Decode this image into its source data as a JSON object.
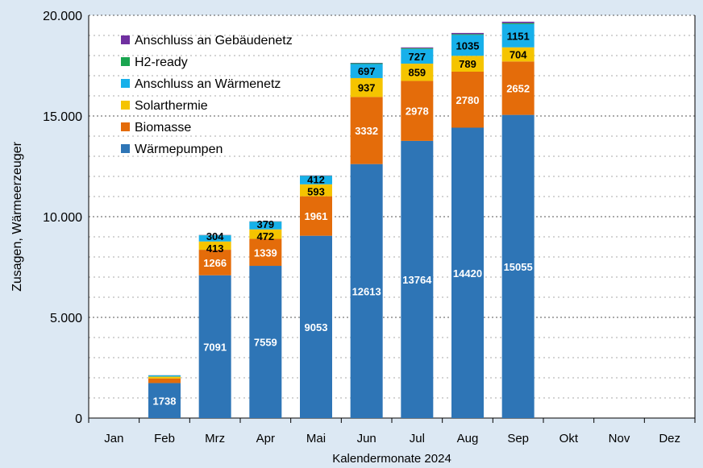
{
  "chart_data": {
    "type": "bar",
    "stacked": true,
    "xlabel": "Kalendermonate 2024",
    "ylabel": "Zusagen, Wärmeerzeuger",
    "ylim": [
      0,
      20000
    ],
    "yticks": [
      "0",
      "5.000",
      "10.000",
      "15.000",
      "20.000"
    ],
    "grid": true,
    "legend": "top-left",
    "categories": [
      "Jan",
      "Feb",
      "Mrz",
      "Apr",
      "Mai",
      "Jun",
      "Jul",
      "Aug",
      "Sep",
      "Okt",
      "Nov",
      "Dez"
    ],
    "series": [
      {
        "name": "Wärmepumpen",
        "color": "#2e75b6",
        "values": [
          0,
          1738,
          7091,
          7559,
          9053,
          12613,
          13764,
          14420,
          15055,
          0,
          0,
          0
        ],
        "labels": [
          null,
          "1738",
          "7091",
          "7559",
          "9053",
          "12613",
          "13764",
          "14420",
          "15055",
          null,
          null,
          null
        ],
        "label_color": "#ffffff"
      },
      {
        "name": "Biomasse",
        "color": "#e46c0a",
        "values": [
          0,
          230,
          1266,
          1339,
          1961,
          3332,
          2978,
          2780,
          2652,
          0,
          0,
          0
        ],
        "labels": [
          null,
          null,
          "1266",
          "1339",
          "1961",
          "3332",
          "2978",
          "2780",
          "2652",
          null,
          null,
          null
        ],
        "label_color": "#ffffff"
      },
      {
        "name": "Solarthermie",
        "color": "#f5c400",
        "values": [
          0,
          90,
          413,
          472,
          593,
          937,
          859,
          789,
          704,
          0,
          0,
          0
        ],
        "labels": [
          null,
          null,
          "413",
          "472",
          "593",
          "937",
          "859",
          "789",
          "704",
          null,
          null,
          null
        ],
        "label_color": "#000000"
      },
      {
        "name": "Anschluss an Wärmenetz",
        "color": "#17b0ea",
        "values": [
          0,
          60,
          304,
          379,
          412,
          697,
          727,
          1035,
          1151,
          0,
          0,
          0
        ],
        "labels": [
          null,
          null,
          "304",
          "379",
          "412",
          "697",
          "727",
          "1035",
          "1151",
          null,
          null,
          null
        ],
        "label_color": "#000000"
      },
      {
        "name": "H2-ready",
        "color": "#1aa550",
        "values": [
          0,
          5,
          10,
          10,
          15,
          40,
          40,
          40,
          50,
          0,
          0,
          0
        ],
        "labels": []
      },
      {
        "name": "Anschluss an Gebäudenetz",
        "color": "#7030a0",
        "values": [
          0,
          5,
          10,
          10,
          15,
          20,
          40,
          60,
          70,
          0,
          0,
          0
        ],
        "labels": []
      }
    ]
  }
}
